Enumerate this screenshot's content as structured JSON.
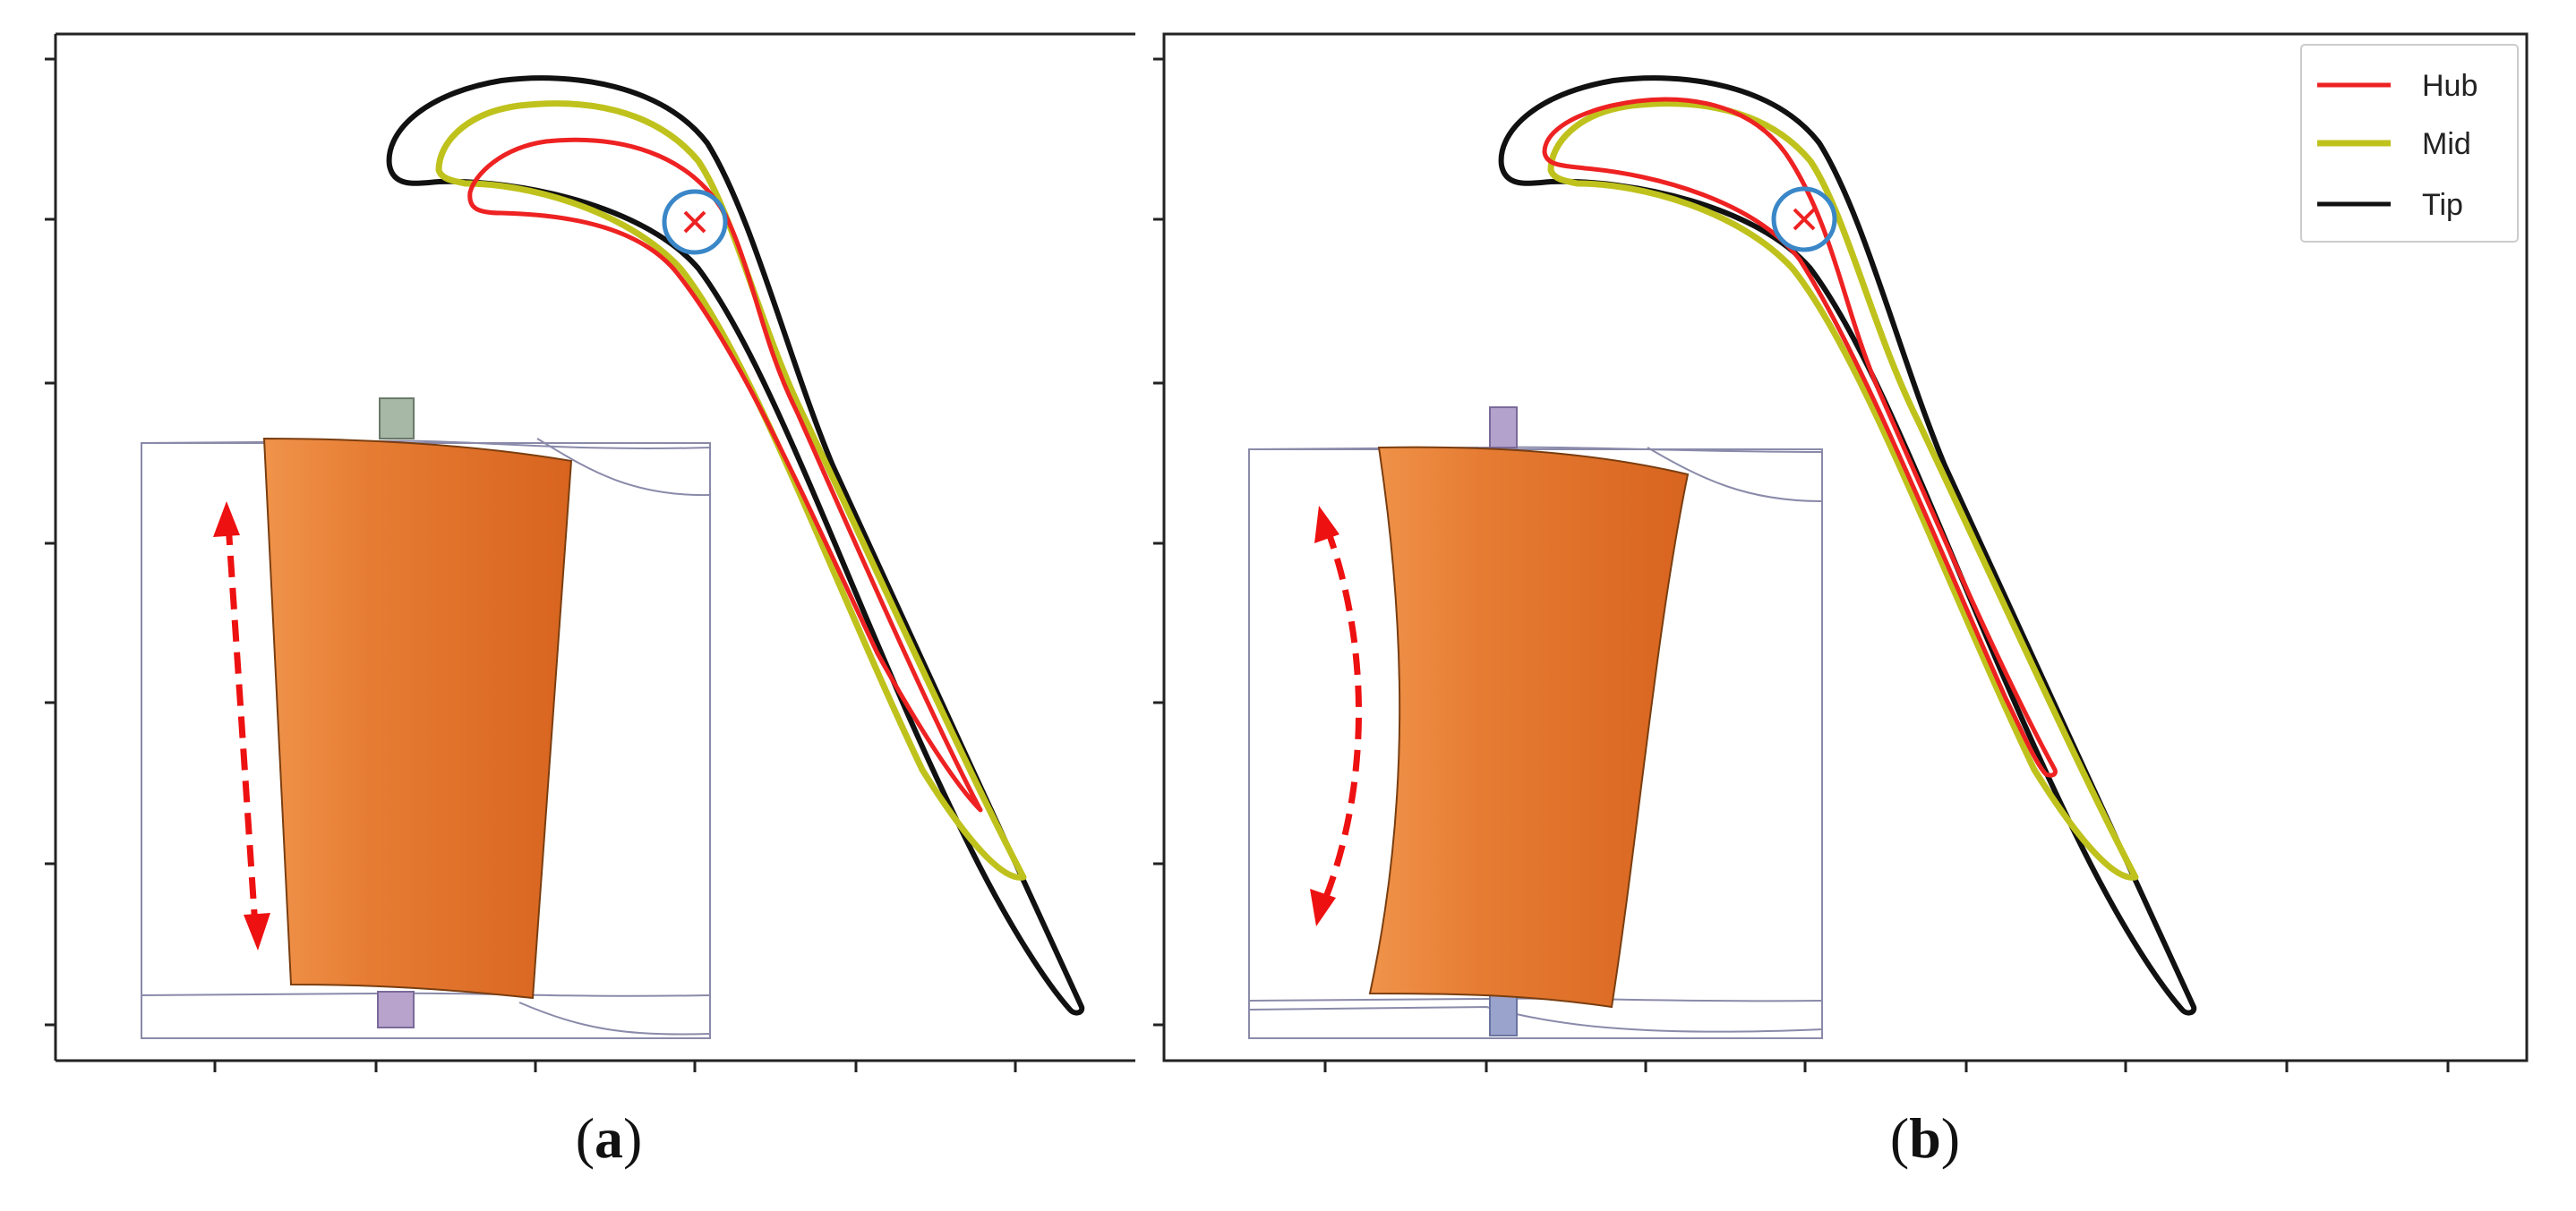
{
  "panels": [
    {
      "id": "a",
      "caption_open": "(",
      "caption_letter": "a",
      "caption_close": ")"
    },
    {
      "id": "b",
      "caption_open": "(",
      "caption_letter": "b",
      "caption_close": ")"
    }
  ],
  "legend": {
    "items": [
      {
        "label": "Hub",
        "color": "#ee2222"
      },
      {
        "label": "Mid",
        "color": "#bfc21c"
      },
      {
        "label": "Tip",
        "color": "#111111"
      }
    ]
  },
  "colors": {
    "hub": "#ee2222",
    "mid": "#bfc21c",
    "tip": "#111111",
    "marker_circle": "#3a87c8",
    "marker_cross": "#ee2222",
    "blade_orange": "#e07a30",
    "arrow": "#ee1111"
  },
  "icons": {
    "marker": "circled-cross-icon",
    "arrow_a": "straight-double-arrow-icon",
    "arrow_b": "curved-double-arrow-icon"
  }
}
